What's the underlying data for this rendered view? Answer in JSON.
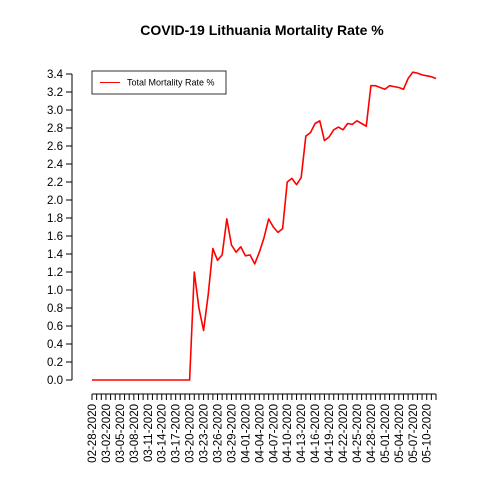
{
  "chart_data": {
    "type": "line",
    "title": "COVID-19 Lithuania Mortality Rate %",
    "xlabel": "",
    "ylabel": "",
    "ylim": [
      0,
      3.4
    ],
    "yticks": [
      "0.0",
      "0.2",
      "0.4",
      "0.6",
      "0.8",
      "1.0",
      "1.2",
      "1.4",
      "1.6",
      "1.8",
      "2.0",
      "2.2",
      "2.4",
      "2.6",
      "2.8",
      "3.0",
      "3.2",
      "3.4"
    ],
    "xtick_labels": [
      "02-28-2020",
      "03-02-2020",
      "03-05-2020",
      "03-08-2020",
      "03-11-2020",
      "03-14-2020",
      "03-17-2020",
      "03-20-2020",
      "03-23-2020",
      "03-26-2020",
      "03-29-2020",
      "04-01-2020",
      "04-04-2020",
      "04-07-2020",
      "04-10-2020",
      "04-13-2020",
      "04-16-2020",
      "04-19-2020",
      "04-22-2020",
      "04-25-2020",
      "04-28-2020",
      "05-01-2020",
      "05-04-2020",
      "05-07-2020",
      "05-10-2020"
    ],
    "legend": {
      "position": "top-left"
    },
    "series_color": "#ff0000",
    "series": [
      {
        "name": "Total Mortality Rate %",
        "values": [
          0,
          0,
          0,
          0,
          0,
          0,
          0,
          0,
          0,
          0,
          0,
          0,
          0,
          0,
          0,
          0,
          0,
          0,
          0,
          0,
          0,
          0,
          1.2,
          0.8,
          0.55,
          0.95,
          1.46,
          1.33,
          1.39,
          1.79,
          1.5,
          1.42,
          1.48,
          1.38,
          1.39,
          1.29,
          1.42,
          1.58,
          1.79,
          1.7,
          1.64,
          1.68,
          2.2,
          2.24,
          2.17,
          2.25,
          2.71,
          2.75,
          2.85,
          2.88,
          2.66,
          2.7,
          2.78,
          2.81,
          2.78,
          2.85,
          2.84,
          2.88,
          2.85,
          2.82,
          3.27,
          3.27,
          3.25,
          3.23,
          3.27,
          3.26,
          3.25,
          3.23,
          3.35,
          3.42,
          3.41,
          3.39,
          3.38,
          3.37,
          3.35
        ]
      }
    ]
  }
}
